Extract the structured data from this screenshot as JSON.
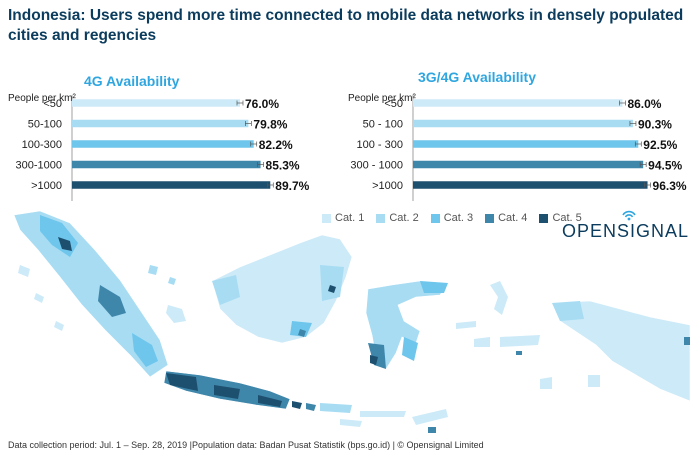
{
  "title": "Indonesia: Users spend more time connected to mobile data networks in densely populated cities and regencies",
  "chart_data": [
    {
      "type": "bar",
      "orientation": "horizontal",
      "title": "4G Availability",
      "ylabel": "People per km²",
      "categories": [
        "<50",
        "50-100",
        "100-300",
        "300-1000",
        ">1000"
      ],
      "values": [
        76.0,
        79.8,
        82.2,
        85.3,
        89.7
      ],
      "value_labels": [
        "76.0%",
        "79.8%",
        "82.2%",
        "85.3%",
        "89.7%"
      ],
      "xlim": [
        0,
        95
      ]
    },
    {
      "type": "bar",
      "orientation": "horizontal",
      "title": "3G/4G Availability",
      "ylabel": "People per km²",
      "categories": [
        "<50",
        "50 - 100",
        "100 - 300",
        "300 - 1000",
        ">1000"
      ],
      "values": [
        86.0,
        90.3,
        92.5,
        94.5,
        96.3
      ],
      "value_labels": [
        "86.0%",
        "90.3%",
        "92.5%",
        "94.5%",
        "96.3%"
      ],
      "xlim": [
        0,
        101
      ]
    }
  ],
  "bar_colors": [
    "#cdeaf8",
    "#a7dcf3",
    "#6ec6ec",
    "#3f86ab",
    "#1d4f6e"
  ],
  "legend": [
    {
      "label": "Cat. 1",
      "color": "#cdeaf8"
    },
    {
      "label": "Cat. 2",
      "color": "#a7dcf3"
    },
    {
      "label": "Cat. 3",
      "color": "#6ec6ec"
    },
    {
      "label": "Cat. 4",
      "color": "#3f86ab"
    },
    {
      "label": "Cat. 5",
      "color": "#1d4f6e"
    }
  ],
  "logo_text": "OPENSIGNAL",
  "footer": "Data collection period: Jul. 1 – Sep. 28, 2019 |Population data: Badan Pusat Statistik (bps.go.id) | © Opensignal Limited"
}
